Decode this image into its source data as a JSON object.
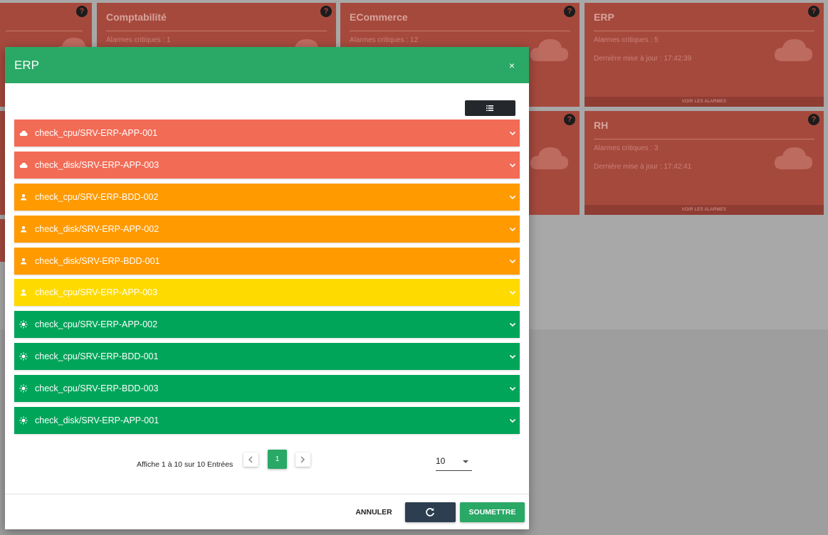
{
  "background": {
    "tiles": [
      {
        "title": "",
        "critical": "",
        "updated": "",
        "footer": ""
      },
      {
        "title": "Comptabilité",
        "critical": "Alarmes critiques : 1",
        "updated": "",
        "footer": ""
      },
      {
        "title": "ECommerce",
        "critical": "Alarmes critiques : 12",
        "updated": "",
        "footer": ""
      },
      {
        "title": "ERP",
        "critical": "Alarmes critiques : 5",
        "updated": "Dernière mise à jour : 17:42:39",
        "footer": "VOIR LES ALARMES"
      },
      {
        "title": "",
        "critical": "",
        "updated": "",
        "footer": ""
      },
      {
        "title": "RH",
        "critical": "Alarmes critiques : 3",
        "updated": "Dernière mise à jour : 17:42:41",
        "footer": "VOIR LES ALARMES"
      }
    ],
    "help_glyph": "?"
  },
  "modal": {
    "title": "ERP",
    "close_glyph": "×",
    "list_button_icon": "list-icon",
    "rows": [
      {
        "label": "check_cpu/SRV-ERP-APP-001",
        "icon": "cloud-icon",
        "color": "#f26b55"
      },
      {
        "label": "check_disk/SRV-ERP-APP-003",
        "icon": "cloud-icon",
        "color": "#f26b55"
      },
      {
        "label": "check_cpu/SRV-ERP-BDD-002",
        "icon": "person-icon",
        "color": "#ff9a00"
      },
      {
        "label": "check_disk/SRV-ERP-APP-002",
        "icon": "person-icon",
        "color": "#ff9a00"
      },
      {
        "label": "check_disk/SRV-ERP-BDD-001",
        "icon": "person-icon",
        "color": "#ff9a00"
      },
      {
        "label": "check_cpu/SRV-ERP-APP-003",
        "icon": "person-icon",
        "color": "#ffda00"
      },
      {
        "label": "check_cpu/SRV-ERP-APP-002",
        "icon": "sun-icon",
        "color": "#00a55a"
      },
      {
        "label": "check_cpu/SRV-ERP-BDD-001",
        "icon": "sun-icon",
        "color": "#00a55a"
      },
      {
        "label": "check_cpu/SRV-ERP-BDD-003",
        "icon": "sun-icon",
        "color": "#00a55a"
      },
      {
        "label": "check_disk/SRV-ERP-APP-001",
        "icon": "sun-icon",
        "color": "#00a55a"
      }
    ],
    "pagination": {
      "info": "Affiche 1 à 10 sur 10 Entrées",
      "current_page": "1",
      "page_size": "10"
    },
    "footer": {
      "cancel_label": "ANNULER",
      "refresh_icon": "refresh-icon",
      "submit_label": "SOUMETTRE"
    }
  },
  "colors": {
    "primary_green": "#2aa866",
    "major_red": "#f26b55",
    "minor_orange": "#ff9a00",
    "warning_yellow": "#ffda00",
    "ok_green": "#00a55a",
    "dark_button": "#2c3e50"
  }
}
